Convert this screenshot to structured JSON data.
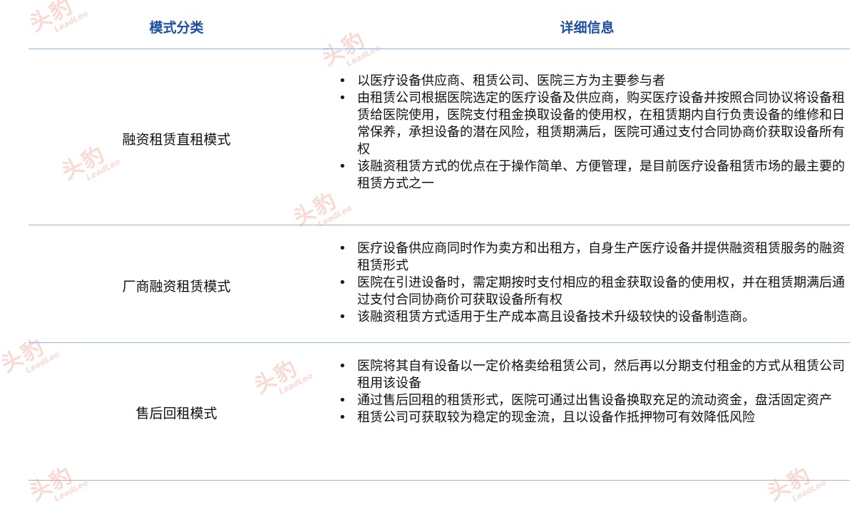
{
  "header": {
    "category_label": "模式分类",
    "details_label": "详细信息"
  },
  "rows": [
    {
      "category": "融资租赁直租模式",
      "details": [
        "以医疗设备供应商、租赁公司、医院三方为主要参与者",
        "由租赁公司根据医院选定的医疗设备及供应商，购买医疗设备并按照合同协议将设备租赁给医院使用，医院支付租金换取设备的使用权，在租赁期内自行负责设备的维修和日常保养，承担设备的潜在风险，租赁期满后，医院可通过支付合同协商价获取设备所有权",
        "该融资租赁方式的优点在于操作简单、方便管理，是目前医疗设备租赁市场的最主要的租赁方式之一"
      ]
    },
    {
      "category": "厂商融资租赁模式",
      "details": [
        "医疗设备供应商同时作为卖方和出租方，自身生产医疗设备并提供融资租赁服务的融资租赁形式",
        "医院在引进设备时，需定期按时支付相应的租金获取设备的使用权，并在租赁期满后通过支付合同协商价可获取设备所有权",
        "该融资租赁方式适用于生产成本高且设备技术升级较快的设备制造商。"
      ]
    },
    {
      "category": "售后回租模式",
      "details": [
        "医院将其自有设备以一定价格卖给租赁公司，然后再以分期支付租金的方式从租赁公司租用该设备",
        "通过售后回租的租赁形式，医院可通过出售设备换取充足的流动资金，盘活固定资产",
        "租赁公司可获取较为稳定的现金流，且以设备作抵押物可有效降低风险"
      ]
    }
  ],
  "bullet_symbol": "•",
  "watermark": {
    "mark": "头豹",
    "sub": "LeadLeo"
  },
  "colors": {
    "header_text": "#1b4fa3",
    "rule": "#9fb4d2",
    "watermark": "#e05a3c"
  }
}
